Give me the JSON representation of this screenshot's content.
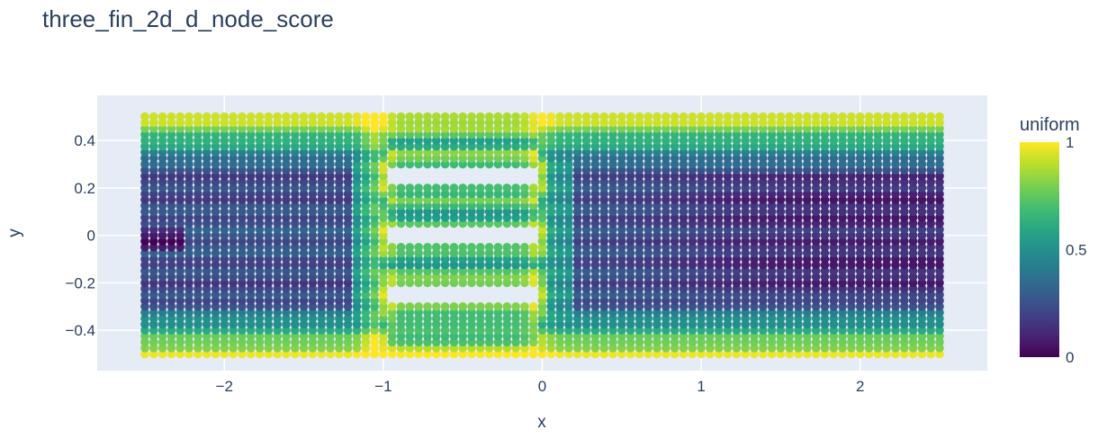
{
  "chart_data": {
    "type": "scatter",
    "title": "three_fin_2d_d_node_score",
    "xlabel": "x",
    "ylabel": "y",
    "xlim": [
      -2.8,
      2.8
    ],
    "ylim": [
      -0.57,
      0.59
    ],
    "xticks": [
      -2,
      -1,
      0,
      1,
      2
    ],
    "xtick_labels": [
      "−2",
      "−1",
      "0",
      "1",
      "2"
    ],
    "yticks": [
      -0.4,
      -0.2,
      0,
      0.2,
      0.4
    ],
    "ytick_labels": [
      "−0.4",
      "−0.2",
      "0",
      "0.2",
      "0.4"
    ],
    "grid": true,
    "domain": {
      "x": [
        -2.5,
        2.5
      ],
      "y": [
        -0.5,
        0.5
      ]
    },
    "fins": [
      {
        "x": [
          -0.97,
          -0.03
        ],
        "y": [
          0.22,
          0.28
        ]
      },
      {
        "x": [
          -0.97,
          -0.03
        ],
        "y": [
          -0.03,
          0.03
        ]
      },
      {
        "x": [
          -0.97,
          -0.03
        ],
        "y": [
          -0.28,
          -0.22
        ]
      }
    ],
    "colorbar": {
      "title": "uniform",
      "range": [
        0,
        1
      ],
      "ticks": [
        0,
        0.5,
        1
      ],
      "tick_labels": [
        "0",
        "0.5",
        "1"
      ],
      "colorscale": "Viridis"
    },
    "colors": {
      "plot_bg": "#e5ecf6",
      "grid": "#ffffff",
      "text": "#2a3f5f"
    }
  }
}
